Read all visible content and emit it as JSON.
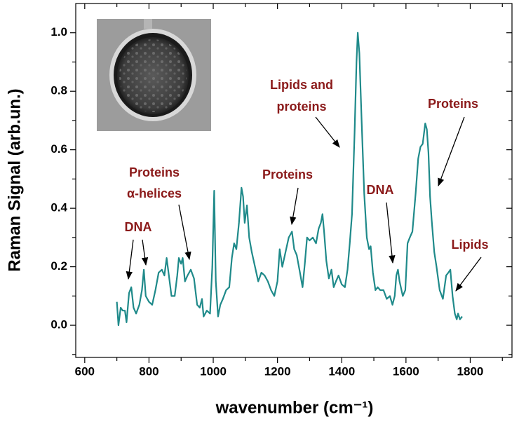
{
  "chart_data": {
    "type": "line",
    "x_label": "wavenumber (cm⁻¹)",
    "y_label": "Raman Signal (arb.un.)",
    "color": "#1f8a8a",
    "annotation_color": "#8b1a1a",
    "xlim": [
      572,
      1930
    ],
    "ylim": [
      -0.11,
      1.1
    ],
    "xticks": [
      600,
      800,
      1000,
      1200,
      1400,
      1600,
      1800
    ],
    "xminorticks": [
      700,
      900,
      1100,
      1300,
      1500,
      1700,
      1900
    ],
    "yticks": [
      {
        "value": 0,
        "label": "0.0"
      },
      0.2,
      0.4,
      0.6,
      0.8,
      {
        "value": 1,
        "label": "1.0"
      }
    ],
    "yminorticks": [
      -0.1,
      0.1,
      0.3,
      0.5,
      0.7,
      0.9
    ],
    "annotations": [
      {
        "lines": [
          "DNA"
        ]
      },
      {
        "lines": [
          "Proteins",
          "α-helices"
        ]
      },
      {
        "lines": [
          "Proteins"
        ]
      },
      {
        "lines": [
          "Lipids and",
          "proteins"
        ]
      },
      {
        "lines": [
          "DNA"
        ]
      },
      {
        "lines": [
          "Proteins"
        ]
      },
      {
        "lines": [
          "Lipids"
        ]
      }
    ],
    "x": [
      700,
      705,
      712,
      718,
      725,
      730,
      738,
      745,
      752,
      760,
      770,
      778,
      784,
      790,
      800,
      810,
      820,
      830,
      840,
      848,
      855,
      862,
      870,
      880,
      888,
      893,
      900,
      905,
      912,
      920,
      930,
      940,
      950,
      958,
      965,
      970,
      980,
      990,
      997,
      1003,
      1008,
      1015,
      1022,
      1030,
      1040,
      1050,
      1058,
      1065,
      1072,
      1080,
      1088,
      1093,
      1098,
      1105,
      1112,
      1120,
      1130,
      1140,
      1150,
      1160,
      1170,
      1180,
      1190,
      1200,
      1207,
      1215,
      1225,
      1235,
      1245,
      1252,
      1260,
      1270,
      1278,
      1285,
      1292,
      1300,
      1310,
      1320,
      1328,
      1335,
      1340,
      1345,
      1352,
      1360,
      1368,
      1375,
      1382,
      1390,
      1400,
      1410,
      1418,
      1425,
      1432,
      1440,
      1446,
      1450,
      1455,
      1462,
      1470,
      1478,
      1485,
      1490,
      1497,
      1505,
      1512,
      1520,
      1530,
      1540,
      1550,
      1558,
      1565,
      1570,
      1575,
      1580,
      1590,
      1598,
      1605,
      1612,
      1620,
      1630,
      1638,
      1645,
      1652,
      1660,
      1665,
      1670,
      1675,
      1680,
      1688,
      1695,
      1705,
      1715,
      1725,
      1732,
      1738,
      1745,
      1752,
      1758,
      1762,
      1768,
      1775
    ],
    "values": [
      0.08,
      0.0,
      0.06,
      0.05,
      0.05,
      0.01,
      0.11,
      0.13,
      0.06,
      0.04,
      0.07,
      0.12,
      0.19,
      0.1,
      0.08,
      0.07,
      0.12,
      0.18,
      0.19,
      0.17,
      0.23,
      0.17,
      0.1,
      0.1,
      0.17,
      0.23,
      0.21,
      0.23,
      0.15,
      0.17,
      0.19,
      0.16,
      0.07,
      0.06,
      0.09,
      0.03,
      0.05,
      0.04,
      0.2,
      0.46,
      0.15,
      0.03,
      0.07,
      0.09,
      0.12,
      0.13,
      0.23,
      0.28,
      0.26,
      0.35,
      0.47,
      0.44,
      0.35,
      0.41,
      0.3,
      0.25,
      0.2,
      0.15,
      0.18,
      0.17,
      0.15,
      0.12,
      0.1,
      0.15,
      0.26,
      0.2,
      0.25,
      0.3,
      0.32,
      0.26,
      0.24,
      0.18,
      0.13,
      0.21,
      0.3,
      0.29,
      0.3,
      0.28,
      0.33,
      0.35,
      0.38,
      0.32,
      0.22,
      0.16,
      0.19,
      0.13,
      0.15,
      0.17,
      0.14,
      0.13,
      0.19,
      0.28,
      0.38,
      0.66,
      0.9,
      1.0,
      0.93,
      0.7,
      0.45,
      0.3,
      0.26,
      0.27,
      0.18,
      0.12,
      0.13,
      0.12,
      0.12,
      0.09,
      0.1,
      0.07,
      0.1,
      0.17,
      0.19,
      0.15,
      0.1,
      0.12,
      0.28,
      0.3,
      0.32,
      0.45,
      0.57,
      0.61,
      0.62,
      0.69,
      0.67,
      0.59,
      0.44,
      0.36,
      0.25,
      0.2,
      0.12,
      0.09,
      0.17,
      0.18,
      0.19,
      0.1,
      0.04,
      0.02,
      0.04,
      0.02,
      0.03
    ]
  }
}
